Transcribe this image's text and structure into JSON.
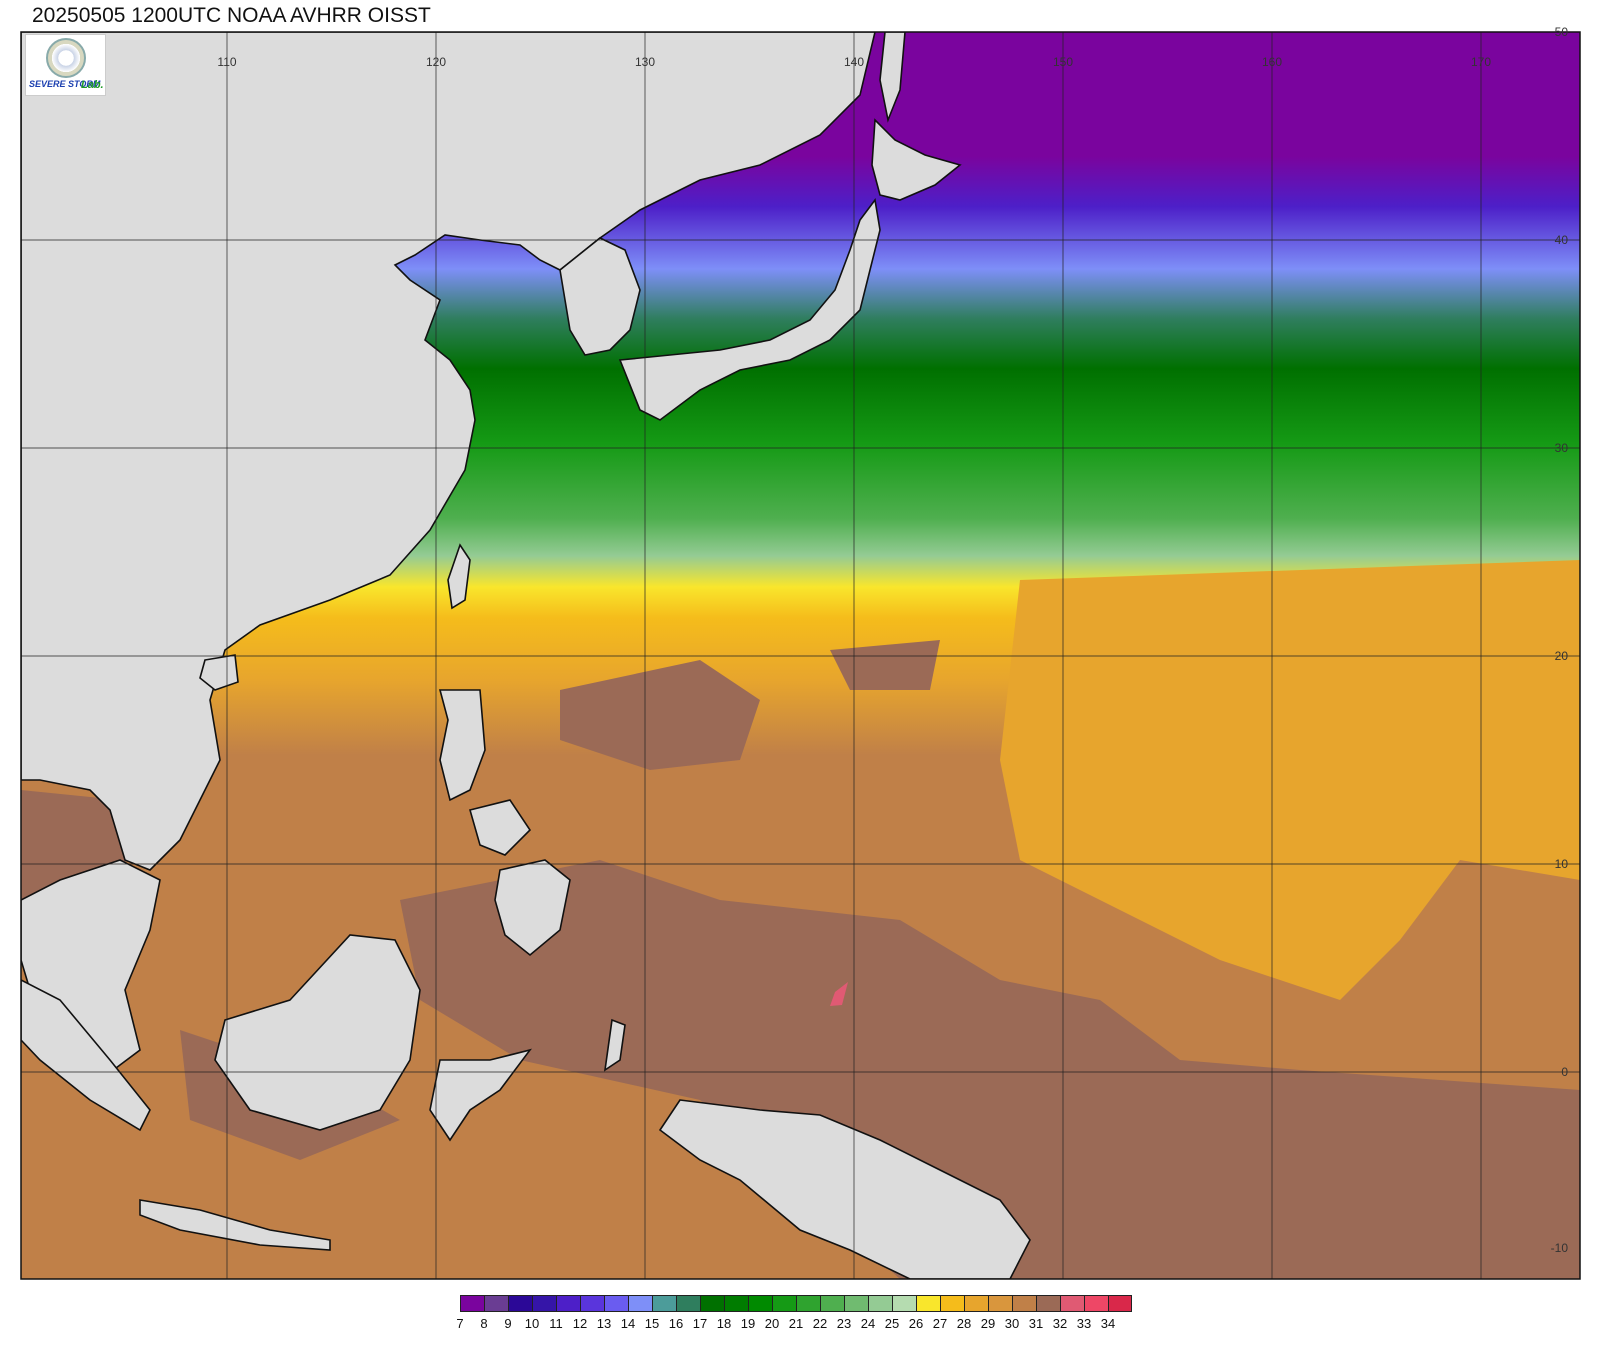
{
  "title": "20250505 1200UTC NOAA AVHRR OISST",
  "logo": {
    "text_main": "SEVERE STORM",
    "text_lab": "Lab."
  },
  "lon_labels": [
    "110",
    "120",
    "130",
    "140",
    "150",
    "160",
    "170"
  ],
  "lat_labels": [
    "50",
    "40",
    "30",
    "20",
    "10",
    "0",
    "-10"
  ],
  "legend": {
    "labels": [
      "7",
      "8",
      "9",
      "10",
      "11",
      "12",
      "13",
      "14",
      "15",
      "16",
      "17",
      "18",
      "19",
      "20",
      "21",
      "22",
      "23",
      "24",
      "25",
      "26",
      "27",
      "28",
      "29",
      "30",
      "31",
      "32",
      "33",
      "34"
    ],
    "colors": [
      "#7a049e",
      "#6a3d93",
      "#2b0897",
      "#3515a8",
      "#4d1fc8",
      "#5a35dc",
      "#6a5cf0",
      "#7e8ff8",
      "#4c9c9a",
      "#2f7e5e",
      "#007000",
      "#007c00",
      "#008a00",
      "#159a15",
      "#2fa32f",
      "#4faf4f",
      "#70bb70",
      "#94cb94",
      "#b5dcb0",
      "#f9e62c",
      "#f5bc1b",
      "#e7a52d",
      "#d9963d",
      "#c08048",
      "#9b6a56",
      "#e05a73",
      "#ee4766",
      "#d9284a"
    ]
  }
}
